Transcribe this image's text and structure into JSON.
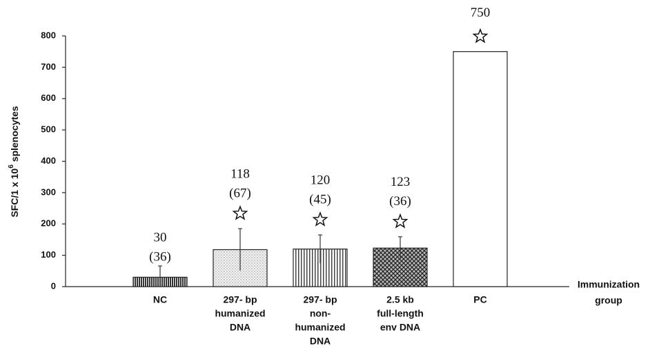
{
  "chart_data": {
    "type": "bar",
    "y_label": {
      "base": "SFC/1 x 10",
      "sup": "6",
      "rest": " splenocytes"
    },
    "x_label": [
      "Immunization",
      "group"
    ],
    "categories": [
      [
        "NC"
      ],
      [
        "297- bp",
        "humanized",
        "DNA"
      ],
      [
        "297- bp",
        "non-",
        "humanized",
        "DNA"
      ],
      [
        "2.5 kb",
        "full-length",
        "env  DNA"
      ],
      [
        "PC"
      ]
    ],
    "values": [
      30,
      118,
      120,
      123,
      750
    ],
    "errors": [
      36,
      67,
      45,
      36,
      null
    ],
    "error_labels": [
      "(36)",
      "(67)",
      "(45)",
      "(36)",
      null
    ],
    "significant": [
      false,
      true,
      true,
      true,
      true
    ],
    "fills": [
      "vertical-dense",
      "dots",
      "vertical",
      "crosshatch",
      "none"
    ],
    "ylim": [
      0,
      800
    ],
    "yticks": [
      0,
      100,
      200,
      300,
      400,
      500,
      600,
      700,
      800
    ]
  }
}
